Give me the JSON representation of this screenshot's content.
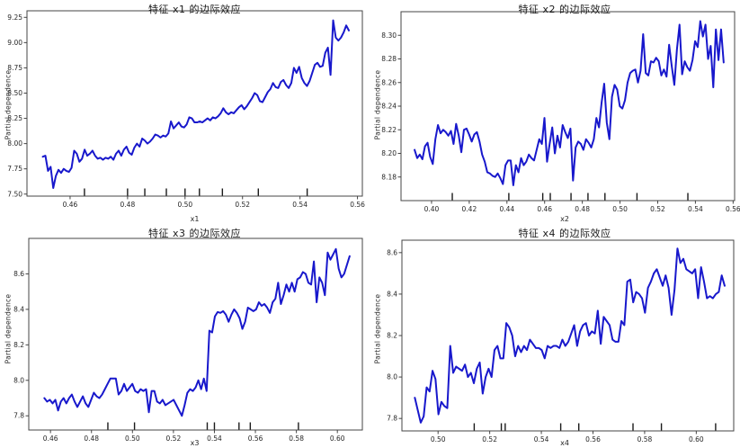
{
  "style": {
    "background": "#ffffff",
    "line_color": "#1818cc",
    "axis_color": "#444444",
    "tick_text_color": "#262626",
    "title_color": "#1a1a1a",
    "rug_color": "#1a1a1a"
  },
  "chart_data": [
    {
      "type": "line",
      "title": "特征 x1 的边际效应",
      "xlabel": "x1",
      "ylabel": "Partial dependence",
      "xlim": [
        0.445,
        0.5617
      ],
      "ylim": [
        7.48,
        9.315
      ],
      "xticks": [
        0.46,
        0.48,
        0.5,
        0.52,
        0.54,
        0.56
      ],
      "xtick_labels": [
        "0.46",
        "0.48",
        "0.50",
        "0.52",
        "0.54",
        "0.56"
      ],
      "yticks": [
        7.5,
        7.75,
        8.0,
        8.25,
        8.5,
        8.75,
        9.0,
        9.25
      ],
      "ytick_labels": [
        "7.50",
        "7.75",
        "8.00",
        "8.25",
        "8.50",
        "8.75",
        "9.00",
        "9.25"
      ],
      "x_start": 0.4505,
      "x_end": 0.557,
      "y": [
        7.87,
        7.88,
        7.73,
        7.77,
        7.56,
        7.68,
        7.74,
        7.71,
        7.75,
        7.73,
        7.72,
        7.76,
        7.93,
        7.9,
        7.82,
        7.85,
        7.94,
        7.88,
        7.9,
        7.93,
        7.88,
        7.85,
        7.86,
        7.84,
        7.86,
        7.85,
        7.87,
        7.84,
        7.9,
        7.93,
        7.88,
        7.94,
        7.97,
        7.91,
        7.89,
        7.96,
        8.0,
        7.97,
        8.05,
        8.03,
        8.0,
        8.02,
        8.05,
        8.09,
        8.08,
        8.06,
        8.08,
        8.07,
        8.1,
        8.22,
        8.15,
        8.18,
        8.21,
        8.17,
        8.16,
        8.19,
        8.26,
        8.25,
        8.21,
        8.21,
        8.22,
        8.21,
        8.23,
        8.25,
        8.23,
        8.26,
        8.25,
        8.27,
        8.3,
        8.35,
        8.31,
        8.29,
        8.31,
        8.3,
        8.33,
        8.36,
        8.38,
        8.34,
        8.37,
        8.41,
        8.45,
        8.5,
        8.48,
        8.42,
        8.41,
        8.46,
        8.51,
        8.54,
        8.6,
        8.56,
        8.55,
        8.61,
        8.63,
        8.58,
        8.55,
        8.6,
        8.75,
        8.7,
        8.76,
        8.65,
        8.6,
        8.57,
        8.62,
        8.7,
        8.78,
        8.8,
        8.76,
        8.77,
        8.9,
        8.95,
        8.68,
        9.22,
        9.05,
        9.02,
        9.05,
        9.1,
        9.17,
        9.12
      ],
      "rug_x": [
        0.465,
        0.48,
        0.486,
        0.4935,
        0.5,
        0.505,
        0.513,
        0.5255,
        0.5425
      ]
    },
    {
      "type": "line",
      "title": "特征 x2 的边际效应",
      "xlabel": "x2",
      "ylabel": "Partial dependence",
      "xlim": [
        0.3838,
        0.5608
      ],
      "ylim": [
        8.16,
        8.32
      ],
      "xticks": [
        0.4,
        0.42,
        0.44,
        0.46,
        0.48,
        0.5,
        0.52,
        0.54,
        0.56
      ],
      "xtick_labels": [
        "0.40",
        "0.42",
        "0.44",
        "0.46",
        "0.48",
        "0.50",
        "0.52",
        "0.54",
        "0.56"
      ],
      "yticks": [
        8.18,
        8.2,
        8.22,
        8.24,
        8.26,
        8.28,
        8.3
      ],
      "ytick_labels": [
        "8.18",
        "8.20",
        "8.22",
        "8.24",
        "8.26",
        "8.28",
        "8.30"
      ],
      "x_start": 0.391,
      "x_end": 0.555,
      "y": [
        8.203,
        8.196,
        8.199,
        8.195,
        8.206,
        8.209,
        8.197,
        8.191,
        8.212,
        8.224,
        8.217,
        8.22,
        8.218,
        8.215,
        8.219,
        8.208,
        8.225,
        8.215,
        8.201,
        8.22,
        8.221,
        8.216,
        8.21,
        8.216,
        8.218,
        8.21,
        8.199,
        8.193,
        8.184,
        8.183,
        8.181,
        8.18,
        8.183,
        8.179,
        8.174,
        8.19,
        8.194,
        8.194,
        8.173,
        8.19,
        8.184,
        8.196,
        8.19,
        8.193,
        8.199,
        8.196,
        8.194,
        8.203,
        8.212,
        8.208,
        8.23,
        8.193,
        8.208,
        8.222,
        8.2,
        8.215,
        8.205,
        8.224,
        8.218,
        8.213,
        8.221,
        8.177,
        8.205,
        8.21,
        8.208,
        8.203,
        8.212,
        8.209,
        8.205,
        8.212,
        8.23,
        8.222,
        8.243,
        8.259,
        8.226,
        8.212,
        8.248,
        8.258,
        8.254,
        8.24,
        8.238,
        8.245,
        8.26,
        8.268,
        8.27,
        8.271,
        8.26,
        8.27,
        8.301,
        8.268,
        8.266,
        8.278,
        8.277,
        8.281,
        8.278,
        8.266,
        8.271,
        8.265,
        8.292,
        8.274,
        8.258,
        8.288,
        8.309,
        8.267,
        8.278,
        8.273,
        8.27,
        8.279,
        8.295,
        8.29,
        8.312,
        8.299,
        8.309,
        8.28,
        8.291,
        8.256,
        8.305,
        8.279,
        8.305,
        8.277
      ],
      "rug_x": [
        0.411,
        0.441,
        0.459,
        0.463,
        0.474,
        0.483,
        0.492,
        0.509,
        0.536
      ]
    },
    {
      "type": "line",
      "title": "特征 x3 的边际效应",
      "xlabel": "x3",
      "ylabel": "Partial dependence",
      "xlim": [
        0.4494,
        0.6122
      ],
      "ylim": [
        7.72,
        8.8
      ],
      "xticks": [
        0.46,
        0.48,
        0.5,
        0.52,
        0.54,
        0.56,
        0.58,
        0.6
      ],
      "xtick_labels": [
        "0.46",
        "0.48",
        "0.50",
        "0.52",
        "0.54",
        "0.56",
        "0.58",
        "0.60"
      ],
      "yticks": [
        7.8,
        8.0,
        8.2,
        8.4,
        8.6
      ],
      "ytick_labels": [
        "7.8",
        "8.0",
        "8.2",
        "8.4",
        "8.6"
      ],
      "x_start": 0.457,
      "x_end": 0.606,
      "y": [
        7.9,
        7.88,
        7.89,
        7.87,
        7.89,
        7.83,
        7.88,
        7.9,
        7.87,
        7.9,
        7.92,
        7.88,
        7.85,
        7.88,
        7.91,
        7.87,
        7.85,
        7.89,
        7.93,
        7.91,
        7.9,
        7.92,
        7.95,
        7.98,
        8.01,
        8.01,
        8.01,
        7.92,
        7.94,
        7.98,
        7.94,
        7.96,
        7.98,
        7.94,
        7.93,
        7.95,
        7.94,
        7.95,
        7.82,
        7.94,
        7.94,
        7.88,
        7.87,
        7.89,
        7.86,
        7.87,
        7.88,
        7.89,
        7.86,
        7.83,
        7.8,
        7.86,
        7.93,
        7.95,
        7.94,
        7.96,
        8.0,
        7.95,
        8.01,
        7.94,
        8.28,
        8.27,
        8.36,
        8.385,
        8.38,
        8.39,
        8.37,
        8.33,
        8.37,
        8.4,
        8.38,
        8.35,
        8.29,
        8.33,
        8.41,
        8.4,
        8.39,
        8.4,
        8.44,
        8.42,
        8.43,
        8.41,
        8.38,
        8.44,
        8.46,
        8.55,
        8.43,
        8.48,
        8.54,
        8.5,
        8.55,
        8.5,
        8.57,
        8.58,
        8.61,
        8.6,
        8.55,
        8.54,
        8.67,
        8.44,
        8.58,
        8.55,
        8.48,
        8.72,
        8.68,
        8.71,
        8.74,
        8.63,
        8.58,
        8.6,
        8.65,
        8.7
      ],
      "rug_x": [
        0.488,
        0.501,
        0.5365,
        0.54,
        0.552,
        0.5575,
        0.581
      ]
    },
    {
      "type": "line",
      "title": "特征 x4 的边际效应",
      "xlabel": "x4",
      "ylabel": "Partial dependence",
      "xlim": [
        0.486,
        0.6145
      ],
      "ylim": [
        7.74,
        8.66
      ],
      "xticks": [
        0.5,
        0.52,
        0.54,
        0.56,
        0.58,
        0.6
      ],
      "xtick_labels": [
        "0.50",
        "0.52",
        "0.54",
        "0.56",
        "0.58",
        "0.60"
      ],
      "yticks": [
        7.8,
        8.0,
        8.2,
        8.4,
        8.6
      ],
      "ytick_labels": [
        "7.8",
        "8.0",
        "8.2",
        "8.4",
        "8.6"
      ],
      "x_start": 0.491,
      "x_end": 0.611,
      "y": [
        7.9,
        7.84,
        7.78,
        7.81,
        7.95,
        7.93,
        8.03,
        7.99,
        7.82,
        7.88,
        7.86,
        7.85,
        8.15,
        8.02,
        8.05,
        8.04,
        8.03,
        8.06,
        8.0,
        8.02,
        7.97,
        8.04,
        8.07,
        7.92,
        8.0,
        8.04,
        8.0,
        8.13,
        8.15,
        8.09,
        8.09,
        8.26,
        8.24,
        8.2,
        8.1,
        8.15,
        8.12,
        8.15,
        8.13,
        8.18,
        8.16,
        8.14,
        8.14,
        8.13,
        8.09,
        8.15,
        8.14,
        8.15,
        8.15,
        8.14,
        8.18,
        8.15,
        8.17,
        8.21,
        8.25,
        8.15,
        8.22,
        8.25,
        8.26,
        8.2,
        8.22,
        8.21,
        8.32,
        8.16,
        8.29,
        8.27,
        8.25,
        8.18,
        8.17,
        8.17,
        8.27,
        8.25,
        8.46,
        8.47,
        8.36,
        8.41,
        8.4,
        8.38,
        8.31,
        8.43,
        8.46,
        8.5,
        8.52,
        8.48,
        8.44,
        8.49,
        8.43,
        8.3,
        8.42,
        8.62,
        8.55,
        8.57,
        8.52,
        8.51,
        8.5,
        8.52,
        8.38,
        8.53,
        8.46,
        8.38,
        8.39,
        8.38,
        8.4,
        8.41,
        8.49,
        8.44
      ],
      "rug_x": [
        0.514,
        0.5245,
        0.526,
        0.5475,
        0.5545,
        0.5755,
        0.5865,
        0.6075
      ]
    }
  ]
}
